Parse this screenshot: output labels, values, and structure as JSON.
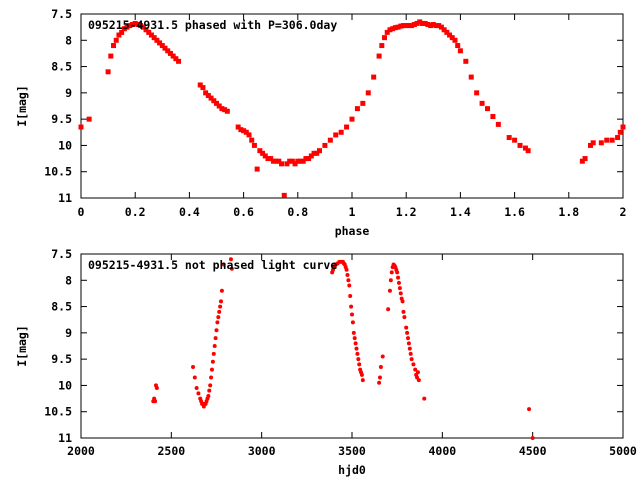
{
  "chart_data": [
    {
      "type": "scatter",
      "title": "095215-4931.5 phased with P=306.0day",
      "xlabel": "phase",
      "ylabel": "I[mag]",
      "xlim": [
        0,
        2
      ],
      "ylim": [
        7.5,
        11
      ],
      "y_inverted": true,
      "x_ticks": [
        "0",
        "0.2",
        "0.4",
        "0.6",
        "0.8",
        "1",
        "1.2",
        "1.4",
        "1.6",
        "1.8",
        "2"
      ],
      "y_ticks": [
        "7.5",
        "8",
        "8.5",
        "9",
        "9.5",
        "10",
        "10.5",
        "11"
      ],
      "marker_color": "#ff0000",
      "series": [
        {
          "x": [
            0.0,
            0.03,
            0.1,
            0.11,
            0.12,
            0.13,
            0.14,
            0.15,
            0.16,
            0.17,
            0.18,
            0.19,
            0.2,
            0.21,
            0.22,
            0.23,
            0.24,
            0.25,
            0.26,
            0.27,
            0.28,
            0.29,
            0.3,
            0.31,
            0.32,
            0.33,
            0.34,
            0.35,
            0.36,
            0.44,
            0.45,
            0.46,
            0.47,
            0.48,
            0.49,
            0.5,
            0.51,
            0.52,
            0.53,
            0.54,
            0.58,
            0.59,
            0.6,
            0.61,
            0.62,
            0.63,
            0.64,
            0.65,
            0.66,
            0.67,
            0.68,
            0.69,
            0.7,
            0.71,
            0.72,
            0.73,
            0.74,
            0.75,
            0.76,
            0.77,
            0.78,
            0.79,
            0.8,
            0.81,
            0.82,
            0.83,
            0.84,
            0.85,
            0.86,
            0.87,
            0.88,
            0.9,
            0.92,
            0.94,
            0.96,
            0.98,
            1.0,
            1.02,
            1.04,
            1.06,
            1.08,
            1.1,
            1.11,
            1.12,
            1.13,
            1.14,
            1.15,
            1.16,
            1.17,
            1.18,
            1.19,
            1.2,
            1.21,
            1.22,
            1.23,
            1.24,
            1.25,
            1.26,
            1.27,
            1.28,
            1.29,
            1.3,
            1.31,
            1.32,
            1.33,
            1.34,
            1.35,
            1.36,
            1.37,
            1.38,
            1.39,
            1.4,
            1.42,
            1.44,
            1.46,
            1.48,
            1.5,
            1.52,
            1.54,
            1.58,
            1.6,
            1.62,
            1.64,
            1.65,
            1.85,
            1.86,
            1.88,
            1.89,
            1.92,
            1.94,
            1.96,
            1.98,
            1.99,
            2.0
          ],
          "y": [
            9.65,
            9.5,
            8.6,
            8.3,
            8.1,
            8.0,
            7.9,
            7.85,
            7.78,
            7.75,
            7.72,
            7.7,
            7.68,
            7.7,
            7.72,
            7.75,
            7.8,
            7.85,
            7.9,
            7.95,
            8.0,
            8.05,
            8.1,
            8.15,
            8.2,
            8.25,
            8.3,
            8.35,
            8.4,
            8.85,
            8.9,
            9.0,
            9.05,
            9.1,
            9.15,
            9.2,
            9.25,
            9.3,
            9.32,
            9.35,
            9.65,
            9.7,
            9.72,
            9.75,
            9.8,
            9.9,
            10.0,
            10.45,
            10.1,
            10.15,
            10.2,
            10.25,
            10.25,
            10.3,
            10.3,
            10.3,
            10.35,
            10.95,
            10.35,
            10.3,
            10.3,
            10.35,
            10.3,
            10.3,
            10.3,
            10.25,
            10.25,
            10.2,
            10.15,
            10.15,
            10.1,
            10.0,
            9.9,
            9.8,
            9.75,
            9.65,
            9.5,
            9.3,
            9.2,
            9.0,
            8.7,
            8.3,
            8.1,
            7.95,
            7.85,
            7.8,
            7.78,
            7.76,
            7.75,
            7.73,
            7.72,
            7.72,
            7.72,
            7.72,
            7.7,
            7.68,
            7.65,
            7.68,
            7.68,
            7.7,
            7.72,
            7.7,
            7.72,
            7.72,
            7.75,
            7.8,
            7.85,
            7.9,
            7.95,
            8.0,
            8.1,
            8.2,
            8.4,
            8.7,
            9.0,
            9.2,
            9.3,
            9.45,
            9.6,
            9.85,
            9.9,
            10.0,
            10.05,
            10.1,
            10.3,
            10.25,
            10.0,
            9.95,
            9.95,
            9.9,
            9.9,
            9.85,
            9.75,
            9.65
          ]
        }
      ]
    },
    {
      "type": "scatter",
      "title": "095215-4931.5 not phased light curve",
      "xlabel": "hjd0",
      "ylabel": "I[mag]",
      "xlim": [
        2000,
        5000
      ],
      "ylim": [
        7.5,
        11
      ],
      "y_inverted": true,
      "x_ticks": [
        "2000",
        "2500",
        "3000",
        "3500",
        "4000",
        "4500",
        "5000"
      ],
      "y_ticks": [
        "7.5",
        "8",
        "8.5",
        "9",
        "9.5",
        "10",
        "10.5",
        "11"
      ],
      "marker_color": "#ff0000",
      "series": [
        {
          "x": [
            2400,
            2405,
            2410,
            2415,
            2420,
            2620,
            2630,
            2640,
            2650,
            2660,
            2665,
            2670,
            2675,
            2680,
            2685,
            2690,
            2695,
            2700,
            2705,
            2710,
            2715,
            2720,
            2725,
            2730,
            2735,
            2740,
            2745,
            2750,
            2755,
            2760,
            2765,
            2770,
            2775,
            2780,
            2790,
            2830,
            2835,
            3390,
            3395,
            3400,
            3405,
            3410,
            3420,
            3430,
            3440,
            3450,
            3455,
            3460,
            3465,
            3470,
            3475,
            3480,
            3485,
            3490,
            3495,
            3500,
            3505,
            3510,
            3515,
            3520,
            3525,
            3530,
            3535,
            3540,
            3545,
            3550,
            3555,
            3560,
            3650,
            3655,
            3660,
            3670,
            3700,
            3710,
            3715,
            3720,
            3725,
            3730,
            3735,
            3740,
            3745,
            3750,
            3755,
            3760,
            3765,
            3770,
            3775,
            3780,
            3785,
            3790,
            3800,
            3805,
            3810,
            3815,
            3820,
            3825,
            3830,
            3840,
            3850,
            3855,
            3860,
            3865,
            3870,
            3900,
            4480,
            4500
          ],
          "y": [
            10.3,
            10.25,
            10.3,
            10.0,
            10.05,
            9.65,
            9.85,
            10.05,
            10.15,
            10.25,
            10.3,
            10.35,
            10.35,
            10.4,
            10.35,
            10.35,
            10.3,
            10.25,
            10.2,
            10.1,
            10.0,
            9.85,
            9.7,
            9.55,
            9.4,
            9.25,
            9.1,
            8.95,
            8.8,
            8.7,
            8.6,
            8.5,
            8.4,
            8.2,
            7.7,
            7.6,
            7.78,
            7.85,
            7.8,
            7.75,
            7.72,
            7.7,
            7.68,
            7.65,
            7.65,
            7.65,
            7.68,
            7.7,
            7.75,
            7.8,
            7.9,
            8.0,
            8.1,
            8.3,
            8.5,
            8.65,
            8.8,
            9.0,
            9.1,
            9.2,
            9.3,
            9.4,
            9.5,
            9.6,
            9.7,
            9.75,
            9.8,
            9.9,
            9.95,
            9.85,
            9.65,
            9.45,
            8.55,
            8.2,
            8.0,
            7.85,
            7.75,
            7.7,
            7.72,
            7.75,
            7.8,
            7.85,
            7.95,
            8.05,
            8.15,
            8.25,
            8.35,
            8.4,
            8.6,
            8.7,
            8.9,
            9.0,
            9.1,
            9.2,
            9.3,
            9.4,
            9.5,
            9.6,
            9.7,
            9.8,
            9.85,
            9.75,
            9.9,
            10.25,
            10.45,
            11.0
          ]
        }
      ]
    }
  ]
}
